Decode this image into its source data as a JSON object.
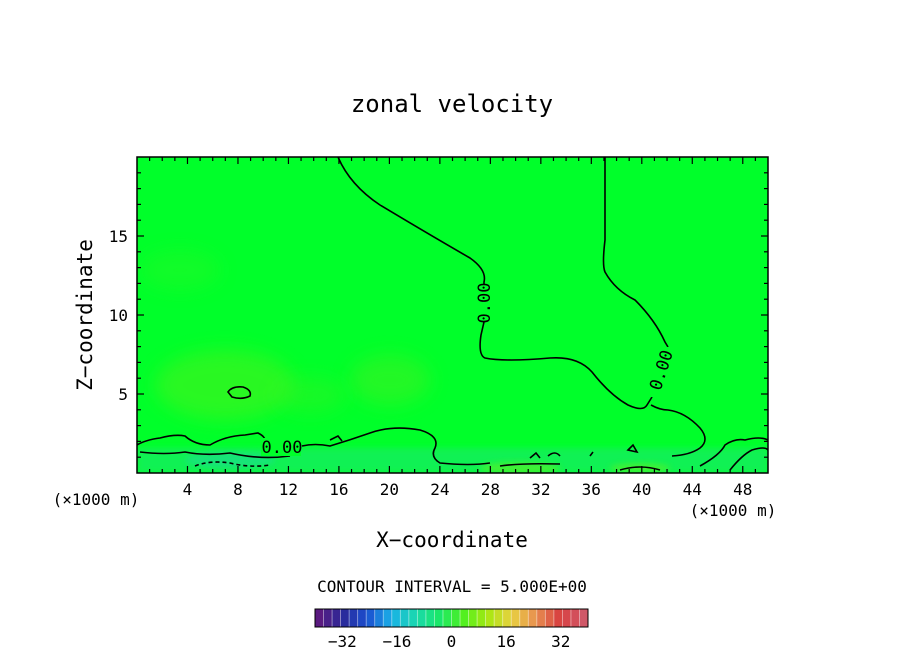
{
  "chart_data": {
    "type": "heatmap",
    "title": "zonal velocity",
    "xlabel": "X−coordinate",
    "ylabel": "Z−coordinate",
    "x_unit_label": "(×1000 m)",
    "xlim": [
      0,
      50
    ],
    "ylim": [
      0,
      20
    ],
    "x_ticks": [
      "4",
      "8",
      "12",
      "16",
      "20",
      "24",
      "28",
      "32",
      "36",
      "40",
      "44",
      "48"
    ],
    "y_ticks": [
      "5",
      "10",
      "15"
    ],
    "contour_interval_label": "CONTOUR INTERVAL = 5.000E+00",
    "contour_labels": [
      "0.00",
      "0.00",
      "0.00"
    ],
    "colorbar": {
      "range": [
        -40,
        40
      ],
      "ticks": [
        "−32",
        "−16",
        "0",
        "16",
        "32"
      ],
      "colors": [
        "#5a1a80",
        "#2a2a9a",
        "#1a50d0",
        "#1ab0e8",
        "#1ad8b0",
        "#1ae868",
        "#50f020",
        "#a8e810",
        "#e8d040",
        "#e89050",
        "#d84040",
        "#d05868"
      ]
    },
    "dominant_field_color": "#00ff2a",
    "grid": false
  }
}
